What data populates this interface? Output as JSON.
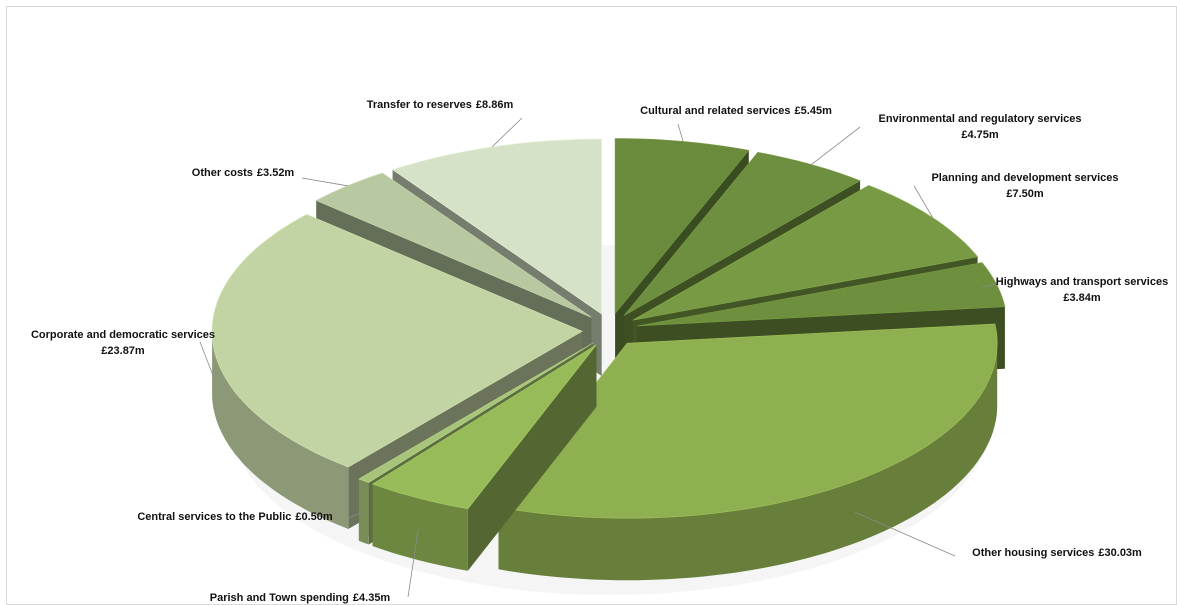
{
  "chart_data": {
    "type": "pie",
    "categories": [
      "Cultural and related services",
      "Environmental and regulatory services",
      "Planning and development services",
      "Highways and transport services",
      "Other housing services",
      "Parish and Town spending",
      "Central services to the Public",
      "Corporate and democratic services",
      "Other costs",
      "Transfer to reserves"
    ],
    "values": [
      5.45,
      4.75,
      7.5,
      3.84,
      30.03,
      4.35,
      0.5,
      23.87,
      3.52,
      8.86
    ],
    "value_labels": [
      "£5.45m",
      "£4.75m",
      "£7.50m",
      "£3.84m",
      "£30.03m",
      "£4.35m",
      "£0.50m",
      "£23.87m",
      "£3.52m",
      "£8.86m"
    ],
    "colors": [
      "#6a8a3c",
      "#6f8f40",
      "#789a44",
      "#6e8f3e",
      "#8fb050",
      "#98bb5a",
      "#a8c47a",
      "#c2d3a4",
      "#b8c8a0",
      "#d6e2c8"
    ]
  }
}
